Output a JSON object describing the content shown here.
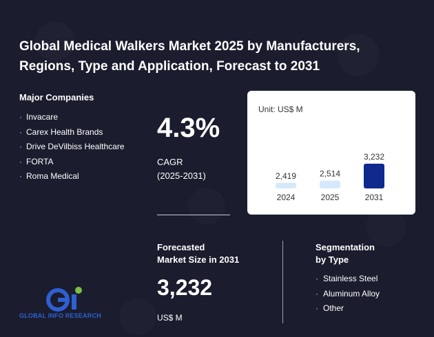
{
  "title": "Global Medical Walkers Market 2025 by Manufacturers, Regions, Type and Application, Forecast to 2031",
  "companies": {
    "heading": "Major Companies",
    "items": [
      "Invacare",
      "Carex Health Brands",
      "Drive DeVilbiss Healthcare",
      "FORTA",
      "Roma Medical"
    ]
  },
  "cagr": {
    "value": "4.3%",
    "label": "CAGR",
    "period": "(2025-2031)"
  },
  "forecast": {
    "heading_line1": "Forecasted",
    "heading_line2": "Market Size in 2031",
    "value": "3,232",
    "unit": "US$ M"
  },
  "segmentation": {
    "heading_line1": "Segmentation",
    "heading_line2": "by Type",
    "items": [
      "Stainless Steel",
      "Aluminum Alloy",
      "Other"
    ]
  },
  "logo": {
    "text": "GLOBAL INFO RESEARCH"
  },
  "colors": {
    "background": "#1b1d2e",
    "bar_light": "#d6e8fb",
    "bar_dark": "#0f2a8c",
    "logo_blue": "#2f5fd0",
    "logo_green": "#7bc043"
  },
  "chart_data": {
    "type": "bar",
    "unit_label": "Unit: US$ M",
    "categories": [
      "2024",
      "2025",
      "2031"
    ],
    "values": [
      2419,
      2514,
      3232
    ],
    "value_labels": [
      "2,419",
      "2,514",
      "3,232"
    ],
    "highlight_index": 2
  }
}
